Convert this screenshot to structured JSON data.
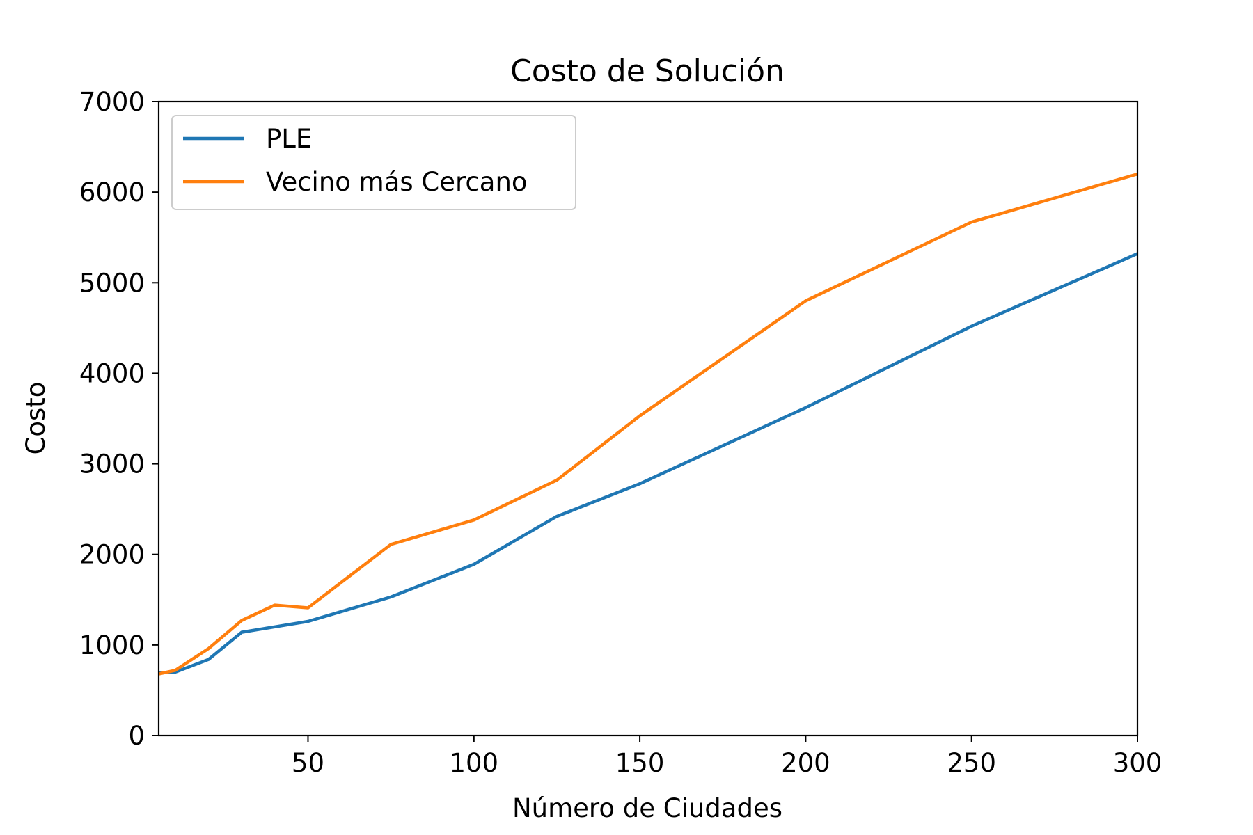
{
  "chart_data": {
    "type": "line",
    "title": "Costo de Solución",
    "xlabel": "Número de Ciudades",
    "ylabel": "Costo",
    "xlim": [
      5,
      300
    ],
    "ylim": [
      0,
      7000
    ],
    "xticks": [
      50,
      100,
      150,
      200,
      250,
      300
    ],
    "yticks": [
      0,
      1000,
      2000,
      3000,
      4000,
      5000,
      6000,
      7000
    ],
    "grid": false,
    "legend_position": "top-left",
    "series": [
      {
        "name": "PLE",
        "color": "#1f77b4",
        "x": [
          5,
          10,
          20,
          30,
          40,
          50,
          75,
          100,
          125,
          150,
          200,
          250,
          300
        ],
        "y": [
          690,
          700,
          840,
          1140,
          1200,
          1260,
          1530,
          1890,
          2420,
          2780,
          3620,
          4520,
          5320
        ]
      },
      {
        "name": "Vecino más Cercano",
        "color": "#ff7f0e",
        "x": [
          5,
          10,
          20,
          30,
          40,
          50,
          75,
          100,
          125,
          150,
          200,
          250,
          300
        ],
        "y": [
          680,
          720,
          960,
          1270,
          1440,
          1410,
          2110,
          2380,
          2820,
          3530,
          4800,
          5670,
          6200
        ]
      }
    ]
  }
}
